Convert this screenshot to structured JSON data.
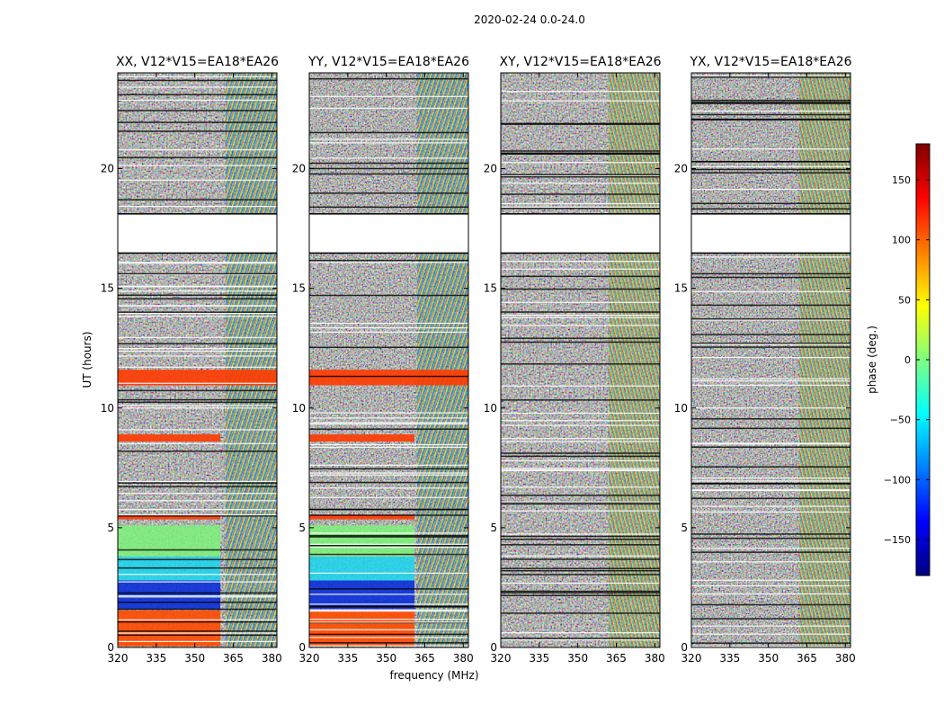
{
  "figure": {
    "suptitle": "2020-02-24 0.0-24.0",
    "xlabel": "frequency (MHz)",
    "ylabel": "UT (hours)"
  },
  "chart_data": {
    "type": "heatmap",
    "title": "2020-02-24 0.0-24.0",
    "xlabel": "frequency (MHz)",
    "ylabel": "UT (hours)",
    "xlim": [
      320,
      382
    ],
    "ylim": [
      0,
      24
    ],
    "xticks": [
      320,
      335,
      350,
      365,
      380
    ],
    "yticks": [
      0,
      5,
      10,
      15,
      20
    ],
    "colorbar": {
      "label": "phase (deg.)",
      "range": [
        -180,
        180
      ],
      "ticks": [
        150,
        100,
        50,
        0,
        -50,
        -100,
        -150
      ],
      "colormap": [
        "#00007f",
        "#0000ff",
        "#007fff",
        "#00ffff",
        "#7fff7f",
        "#ffff00",
        "#ff7f00",
        "#ff0000",
        "#7f0000"
      ]
    },
    "gaps_hours": [
      [
        18.1,
        16.5
      ]
    ],
    "panels": [
      {
        "title": "XX, V12*V15=EA18*EA26",
        "pol": "XX",
        "tick_labels": [
          "320",
          "335",
          "350",
          "365",
          "380"
        ],
        "ytick_labels": [
          "0",
          "5",
          "10",
          "15",
          "20"
        ]
      },
      {
        "title": "YY, V12*V15=EA18*EA26",
        "pol": "YY",
        "tick_labels": [
          "320",
          "335",
          "350",
          "365",
          "380"
        ],
        "ytick_labels": [
          "0",
          "5",
          "10",
          "15",
          "20"
        ]
      },
      {
        "title": "XY, V12*V15=EA18*EA26",
        "pol": "XY",
        "tick_labels": [
          "320",
          "335",
          "350",
          "365",
          "380"
        ],
        "ytick_labels": [
          "0",
          "5",
          "10",
          "15",
          "20"
        ]
      },
      {
        "title": "YX, V12*V15=EA18*EA26",
        "pol": "YX",
        "tick_labels": [
          "320",
          "335",
          "350",
          "365",
          "380"
        ],
        "ytick_labels": [
          "0",
          "5",
          "10",
          "15",
          "20"
        ]
      }
    ],
    "colorbar_tick_labels": [
      "150",
      "100",
      "50",
      "0",
      "−50",
      "−100",
      "−150"
    ]
  }
}
